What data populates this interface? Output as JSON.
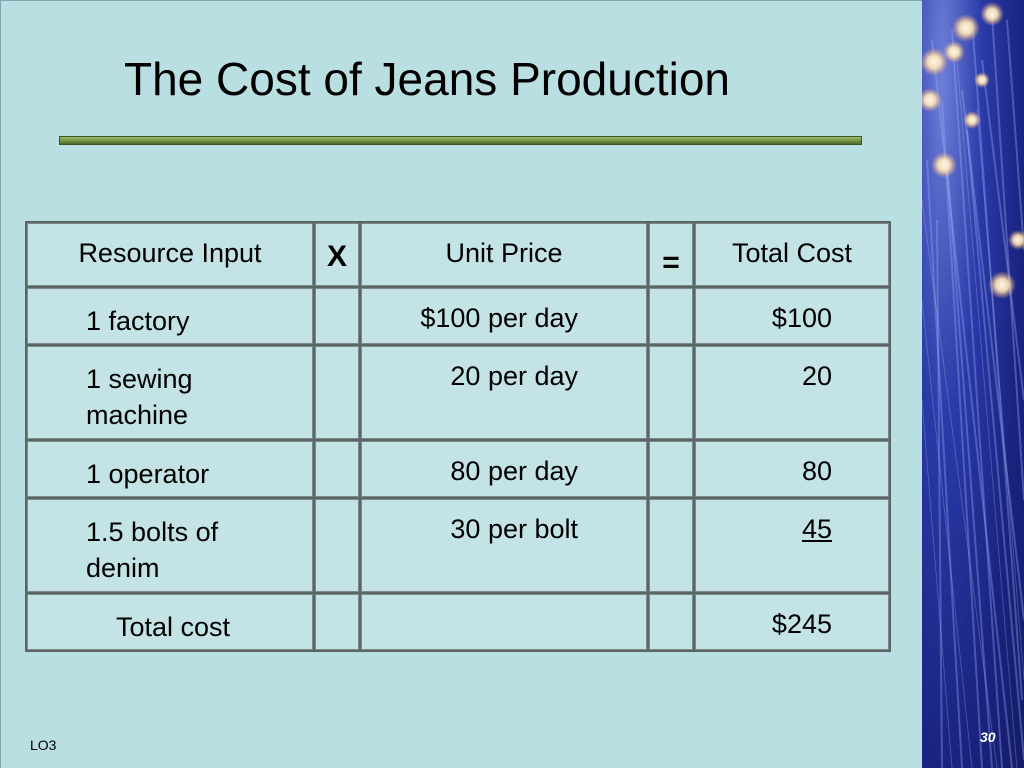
{
  "slide": {
    "title": "The Cost of Jeans Production",
    "footer_label": "LO3",
    "page_number": "30"
  },
  "table": {
    "headers": {
      "resource": "Resource Input",
      "multiply": "X",
      "unit_price": "Unit Price",
      "equals": "=",
      "total_cost": "Total Cost"
    },
    "rows": [
      {
        "resource": "1 factory",
        "unit_price": "$100 per day",
        "total_cost": "$100"
      },
      {
        "resource": "1 sewing machine",
        "unit_price": "20 per day",
        "total_cost": "20"
      },
      {
        "resource": "1 operator",
        "unit_price": "80 per day",
        "total_cost": "80"
      },
      {
        "resource": "1.5 bolts of denim",
        "unit_price": "30 per bolt",
        "total_cost": "45"
      }
    ],
    "total_row": {
      "label": "Total cost",
      "total_cost": "$245"
    }
  },
  "colors": {
    "background": "#b9dfe3",
    "rule": "#6f8d42",
    "fiber_panel": "#2a3aa8"
  }
}
